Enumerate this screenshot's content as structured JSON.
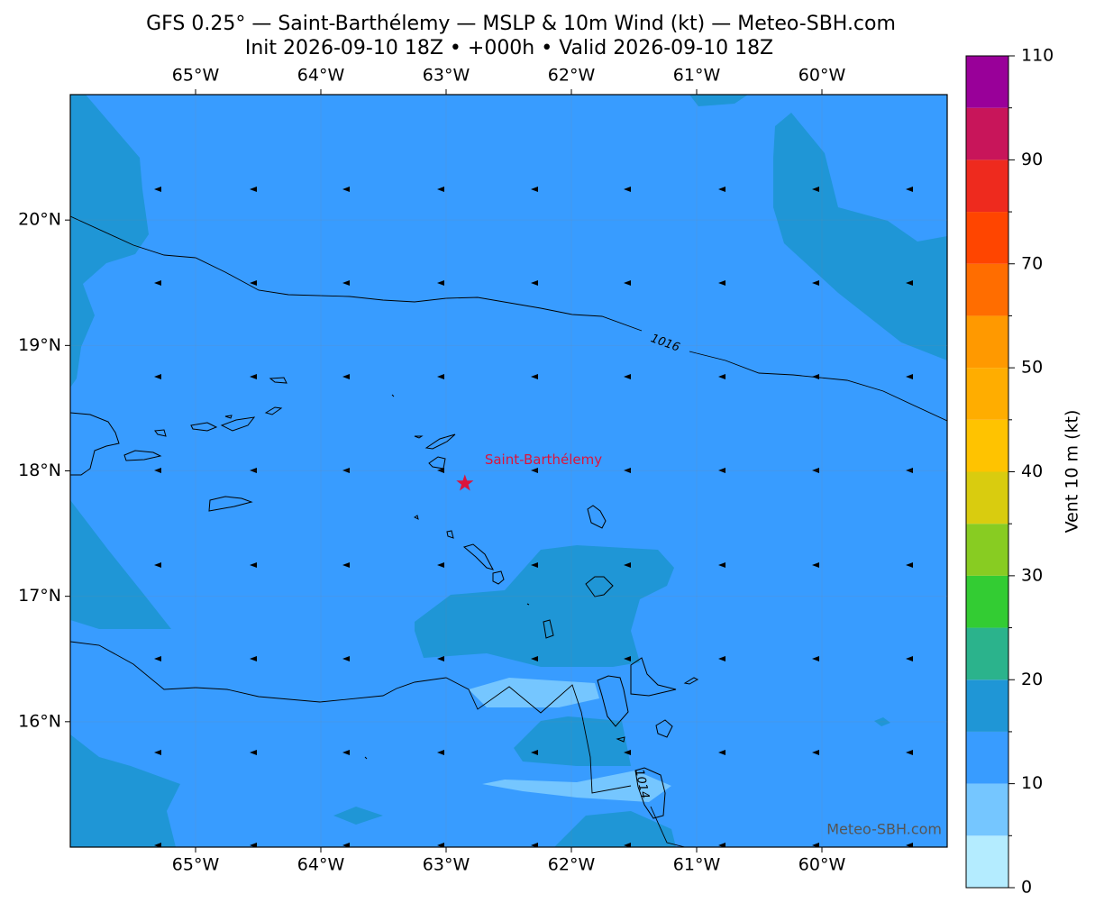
{
  "map": {
    "title": "GFS 0.25° — Saint-Barthélemy — MSLP & 10m Wind (kt) — Meteo-SBH.com",
    "subtitle": "Init 2026-09-10 18Z • +000h • Valid 2026-09-10 18Z",
    "xlim": [
      -66,
      -59
    ],
    "ylim": [
      15,
      21
    ],
    "xticks": [
      {
        "value": -65,
        "label": "65°W"
      },
      {
        "value": -64,
        "label": "64°W"
      },
      {
        "value": -63,
        "label": "63°W"
      },
      {
        "value": -62,
        "label": "62°W"
      },
      {
        "value": -61,
        "label": "61°W"
      },
      {
        "value": -60,
        "label": "60°W"
      }
    ],
    "yticks": [
      {
        "value": 16,
        "label": "16°N"
      },
      {
        "value": 17,
        "label": "17°N"
      },
      {
        "value": 18,
        "label": "18°N"
      },
      {
        "value": 19,
        "label": "19°N"
      },
      {
        "value": 20,
        "label": "20°N"
      }
    ],
    "location": {
      "label": "Saint-Barthélemy",
      "lon": -62.85,
      "lat": 17.9,
      "color": "#dc143c"
    },
    "isobar_labels": [
      "1016",
      "1014"
    ],
    "watermark": "Meteo-SBH.com",
    "colorbar": {
      "label": "Vent 10 m (kt)",
      "levels": [
        0,
        5,
        10,
        15,
        20,
        25,
        30,
        35,
        40,
        45,
        50,
        60,
        70,
        80,
        90,
        100,
        110
      ],
      "colors": [
        "#b4ecff",
        "#75c6ff",
        "#389cff",
        "#1f96d6",
        "#2bb38c",
        "#33cc33",
        "#88cc22",
        "#d9cc0f",
        "#ffc300",
        "#ffad00",
        "#ff9900",
        "#ff6d00",
        "#ff4500",
        "#ee2a1e",
        "#c8155a",
        "#990099"
      ],
      "ticks": [
        0,
        10,
        20,
        30,
        40,
        50,
        70,
        90,
        110
      ]
    }
  }
}
